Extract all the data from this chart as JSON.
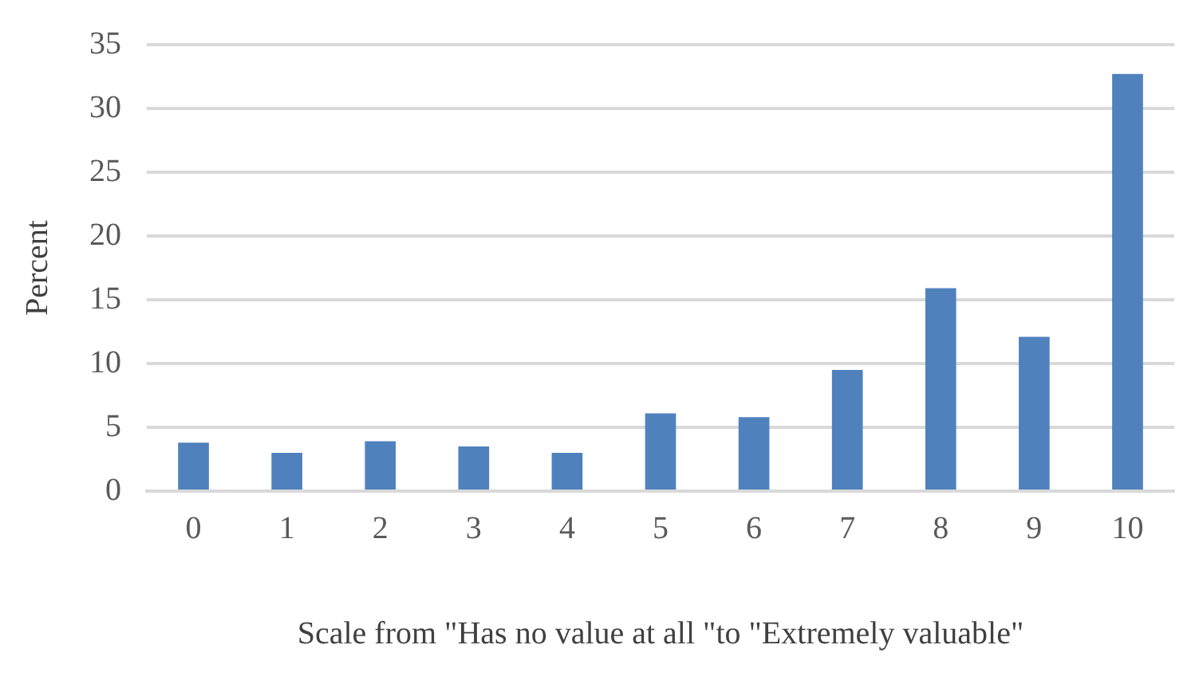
{
  "chart_data": {
    "type": "bar",
    "xlabel": "Scale from \"Has no value at all \"to \"Extremely valuable\"",
    "ylabel": "Percent",
    "categories": [
      "0",
      "1",
      "2",
      "3",
      "4",
      "5",
      "6",
      "7",
      "8",
      "9",
      "10"
    ],
    "values": [
      3.8,
      3.0,
      3.9,
      3.5,
      3.0,
      6.1,
      5.8,
      9.5,
      15.9,
      12.1,
      32.7
    ],
    "color": "#4f81bd",
    "ylim": [
      0,
      35
    ],
    "yticks": [
      0,
      5,
      10,
      15,
      20,
      25,
      30,
      35
    ],
    "grid": "y",
    "legend": false
  }
}
